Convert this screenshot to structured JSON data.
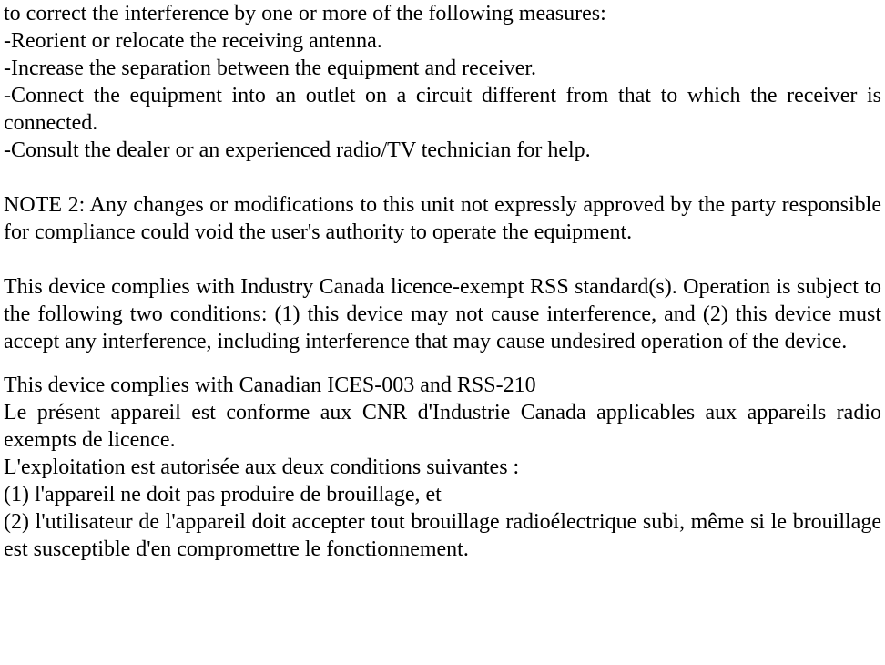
{
  "p1": {
    "line1": "to correct the interference by one or more of the following measures:",
    "line2": "-Reorient or relocate the receiving antenna.",
    "line3": "-Increase the separation between the equipment and receiver.",
    "line4": "-Connect the equipment into an outlet on a circuit different from that to which the receiver is connected.",
    "line5": "-Consult the dealer or an experienced radio/TV technician for help."
  },
  "p2": "NOTE 2: Any changes or modifications to this unit not expressly approved by the party responsible for compliance could void the user's authority to operate the equipment.",
  "p3": "This device complies with Industry Canada licence-exempt RSS standard(s). Operation is subject to the following two conditions: (1) this device may not cause interference, and (2) this device must accept any interference, including interference that may cause undesired operation of the device.",
  "p4": {
    "line1": "This device complies with Canadian ICES-003 and RSS-210",
    "line2": "Le présent appareil est conforme aux CNR d'Industrie Canada applicables aux appareils radio exempts de licence.",
    "line3": "L'exploitation est autorisée aux deux conditions suivantes :",
    "line4": "(1) l'appareil ne doit pas produire de brouillage, et",
    "line5": "(2) l'utilisateur de l'appareil doit accepter tout brouillage radioélectrique subi, même si le brouillage est susceptible d'en compromettre le fonctionnement."
  }
}
